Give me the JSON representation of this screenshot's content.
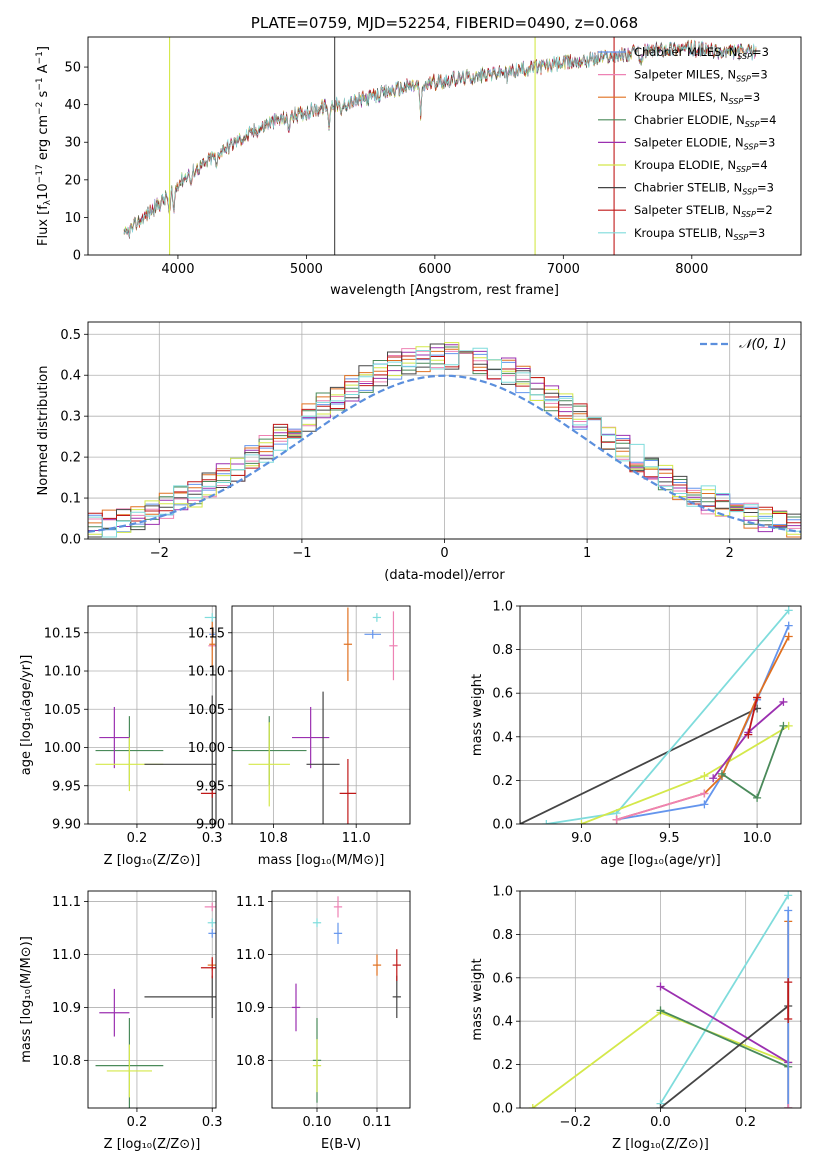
{
  "colors": {
    "chabrier_miles": "#6495ed",
    "salpeter_miles": "#ee82b4",
    "kroupa_miles": "#e07020",
    "chabrier_elodie": "#4a8a5a",
    "salpeter_elodie": "#9b30b0",
    "kroupa_elodie": "#d4e84a",
    "chabrier_stelib": "#454545",
    "salpeter_stelib": "#c01818",
    "kroupa_stelib": "#7fdcdc",
    "normal_curve": "#5b8fdd"
  },
  "chart_data": [
    {
      "id": "spectrum",
      "type": "line",
      "title": "PLATE=0759, MJD=52254, FIBERID=0490, z=0.068",
      "xlabel": "wavelength [Angstrom, rest frame]",
      "ylabel": "Flux [fλ10⁻¹⁷ erg cm⁻² s⁻¹ A⁻¹]",
      "xlim": [
        3300,
        8850
      ],
      "ylim": [
        0,
        58
      ],
      "xticks": [
        "4000",
        "5000",
        "6000",
        "7000",
        "8000"
      ],
      "yticks": [
        "0",
        "10",
        "20",
        "30",
        "40",
        "50"
      ],
      "legend_position": "right",
      "legend": [
        {
          "name": "Chabrier MILES, N",
          "sub": "SSP",
          "suffix": "=3",
          "color_key": "chabrier_miles"
        },
        {
          "name": "Salpeter MILES, N",
          "sub": "SSP",
          "suffix": "=3",
          "color_key": "salpeter_miles"
        },
        {
          "name": "Kroupa MILES, N",
          "sub": "SSP",
          "suffix": "=3",
          "color_key": "kroupa_miles"
        },
        {
          "name": "Chabrier ELODIE, N",
          "sub": "SSP",
          "suffix": "=4",
          "color_key": "chabrier_elodie"
        },
        {
          "name": "Salpeter ELODIE, N",
          "sub": "SSP",
          "suffix": "=3",
          "color_key": "salpeter_elodie"
        },
        {
          "name": "Kroupa ELODIE, N",
          "sub": "SSP",
          "suffix": "=4",
          "color_key": "kroupa_elodie"
        },
        {
          "name": "Chabrier STELIB, N",
          "sub": "SSP",
          "suffix": "=3",
          "color_key": "chabrier_stelib"
        },
        {
          "name": "Salpeter STELIB, N",
          "sub": "SSP",
          "suffix": "=2",
          "color_key": "salpeter_stelib"
        },
        {
          "name": "Kroupa STELIB, N",
          "sub": "SSP",
          "suffix": "=3",
          "color_key": "kroupa_stelib"
        }
      ],
      "continuum": [
        [
          3580,
          5
        ],
        [
          3700,
          9
        ],
        [
          3800,
          12
        ],
        [
          3900,
          15
        ],
        [
          4000,
          19
        ],
        [
          4100,
          22
        ],
        [
          4200,
          24
        ],
        [
          4300,
          27
        ],
        [
          4400,
          29
        ],
        [
          4500,
          31
        ],
        [
          4600,
          33
        ],
        [
          4700,
          35
        ],
        [
          4800,
          36
        ],
        [
          4900,
          37
        ],
        [
          5000,
          38
        ],
        [
          5100,
          39
        ],
        [
          5200,
          40
        ],
        [
          5300,
          40
        ],
        [
          5400,
          41
        ],
        [
          5500,
          42
        ],
        [
          5600,
          43
        ],
        [
          5700,
          44
        ],
        [
          5800,
          45
        ],
        [
          5900,
          45
        ],
        [
          6000,
          46
        ],
        [
          6200,
          47
        ],
        [
          6400,
          48
        ],
        [
          6600,
          49
        ],
        [
          6800,
          50
        ],
        [
          7000,
          51
        ],
        [
          7200,
          52
        ],
        [
          7400,
          53
        ],
        [
          7600,
          54
        ],
        [
          7800,
          55
        ],
        [
          8000,
          55
        ],
        [
          8200,
          54
        ]
      ],
      "vertical_spikes": [
        {
          "x": 5220,
          "color_key": "chabrier_stelib"
        },
        {
          "x": 7395,
          "color_key": "salpeter_stelib"
        },
        {
          "x": 6780,
          "color_key": "kroupa_elodie"
        },
        {
          "x": 3935,
          "color_key": "kroupa_elodie"
        }
      ]
    },
    {
      "id": "residual_histogram",
      "type": "bar",
      "xlabel": "(data-model)/error",
      "ylabel": "Normed distribution",
      "xlim": [
        -2.5,
        2.5
      ],
      "ylim": [
        0,
        0.53
      ],
      "xticks": [
        "−2",
        "−1",
        "0",
        "1",
        "2"
      ],
      "yticks": [
        "0.0",
        "0.1",
        "0.2",
        "0.3",
        "0.4",
        "0.5"
      ],
      "legend_position": "top-right",
      "normal_label": "𝒩(0, 1)",
      "bin_width": 0.1
    },
    {
      "id": "age_vs_Z",
      "type": "scatter",
      "xlabel": "Z [log₁₀(Z/Z⊙)]",
      "ylabel": "age  [log₁₀(age/yr)]",
      "xlim": [
        0.135,
        0.305
      ],
      "ylim": [
        9.9,
        10.185
      ],
      "xticks": [
        "0.2",
        "0.3"
      ],
      "yticks": [
        "9.90",
        "9.95",
        "10.00",
        "10.05",
        "10.10",
        "10.15"
      ],
      "points": [
        {
          "key": "chabrier_miles",
          "x": 0.3,
          "y": 10.148,
          "xerr": 0.004,
          "yerr": 0.0
        },
        {
          "key": "salpeter_miles",
          "x": 0.3,
          "y": 10.133,
          "xerr": 0.0,
          "yerr": 0.0
        },
        {
          "key": "kroupa_miles",
          "x": 0.3,
          "y": 10.135,
          "xerr": 0.004,
          "yerr": 0.03
        },
        {
          "key": "chabrier_elodie",
          "x": 0.19,
          "y": 9.996,
          "xerr": 0.045,
          "yerr": 0.045
        },
        {
          "key": "salpeter_elodie",
          "x": 0.17,
          "y": 10.013,
          "xerr": 0.02,
          "yerr": 0.04
        },
        {
          "key": "kroupa_elodie",
          "x": 0.19,
          "y": 9.978,
          "xerr": 0.045,
          "yerr": 0.035
        },
        {
          "key": "chabrier_stelib",
          "x": 0.3,
          "y": 9.978,
          "xerr": 0.09,
          "yerr": 0.09
        },
        {
          "key": "salpeter_stelib",
          "x": 0.3,
          "y": 9.94,
          "xerr": 0.015,
          "yerr": 0.0
        },
        {
          "key": "kroupa_stelib",
          "x": 0.3,
          "y": 10.17,
          "xerr": 0.01,
          "yerr": 0.0
        }
      ]
    },
    {
      "id": "age_vs_mass",
      "type": "scatter",
      "xlabel": "mass [log₁₀(M/M⊙)]",
      "ylabel": "",
      "xlim": [
        10.7,
        11.13
      ],
      "ylim": [
        9.9,
        10.185
      ],
      "xticks": [
        "10.8",
        "11.0"
      ],
      "yticks": [
        "9.90",
        "9.95",
        "10.00",
        "10.05",
        "10.10",
        "10.15"
      ],
      "points": [
        {
          "key": "chabrier_miles",
          "x": 11.04,
          "y": 10.148,
          "xerr": 0.02,
          "yerr": 0.0
        },
        {
          "key": "salpeter_miles",
          "x": 11.09,
          "y": 10.133,
          "xerr": 0.01,
          "yerr": 0.045
        },
        {
          "key": "kroupa_miles",
          "x": 10.98,
          "y": 10.135,
          "xerr": 0.01,
          "yerr": 0.048
        },
        {
          "key": "chabrier_elodie",
          "x": 10.79,
          "y": 9.996,
          "xerr": 0.09,
          "yerr": 0.045
        },
        {
          "key": "salpeter_elodie",
          "x": 10.89,
          "y": 10.013,
          "xerr": 0.045,
          "yerr": 0.04
        },
        {
          "key": "kroupa_elodie",
          "x": 10.79,
          "y": 9.978,
          "xerr": 0.05,
          "yerr": 0.055
        },
        {
          "key": "chabrier_stelib",
          "x": 10.92,
          "y": 9.978,
          "xerr": 0.04,
          "yerr": 0.095
        },
        {
          "key": "salpeter_stelib",
          "x": 10.98,
          "y": 9.94,
          "xerr": 0.02,
          "yerr": 0.045
        },
        {
          "key": "kroupa_stelib",
          "x": 11.05,
          "y": 10.17,
          "xerr": 0.01,
          "yerr": 0.0
        }
      ]
    },
    {
      "id": "weight_vs_age",
      "type": "line",
      "xlabel": "age  [log₁₀(age/yr)]",
      "ylabel": "mass weight",
      "xlim": [
        8.65,
        10.25
      ],
      "ylim": [
        0,
        1.0
      ],
      "xticks": [
        "9.0",
        "9.5",
        "10.0"
      ],
      "yticks": [
        "0.0",
        "0.2",
        "0.4",
        "0.6",
        "0.8",
        "1.0"
      ],
      "series": [
        {
          "key": "chabrier_stelib",
          "x": [
            8.65,
            10.0
          ],
          "y": [
            0.0,
            0.53
          ]
        },
        {
          "key": "kroupa_stelib",
          "x": [
            8.8,
            9.2,
            10.18
          ],
          "y": [
            0.0,
            0.05,
            0.98
          ]
        },
        {
          "key": "kroupa_elodie",
          "x": [
            9.0,
            9.7,
            10.18
          ],
          "y": [
            0.0,
            0.22,
            0.45
          ]
        },
        {
          "key": "chabrier_miles",
          "x": [
            9.2,
            9.7,
            9.8,
            10.0,
            10.18
          ],
          "y": [
            0.02,
            0.09,
            0.22,
            0.57,
            0.91
          ]
        },
        {
          "key": "kroupa_miles",
          "x": [
            9.2,
            9.7,
            9.8,
            10.0,
            10.18
          ],
          "y": [
            0.02,
            0.14,
            0.22,
            0.58,
            0.86
          ]
        },
        {
          "key": "salpeter_elodie",
          "x": [
            9.75,
            9.95,
            10.15
          ],
          "y": [
            0.21,
            0.42,
            0.56
          ]
        },
        {
          "key": "chabrier_elodie",
          "x": [
            9.8,
            10.0,
            10.15
          ],
          "y": [
            0.23,
            0.12,
            0.45
          ]
        },
        {
          "key": "salpeter_stelib",
          "x": [
            9.95,
            10.0
          ],
          "y": [
            0.41,
            0.58
          ]
        },
        {
          "key": "salpeter_miles",
          "x": [
            9.2,
            9.7
          ],
          "y": [
            0.02,
            0.14
          ]
        }
      ]
    },
    {
      "id": "mass_vs_Z",
      "type": "scatter",
      "xlabel": "Z [log₁₀(Z/Z⊙)]",
      "ylabel": "mass [log₁₀(M/M⊙)]",
      "xlim": [
        0.135,
        0.305
      ],
      "ylim": [
        10.71,
        11.12
      ],
      "xticks": [
        "0.2",
        "0.3"
      ],
      "yticks": [
        "10.8",
        "10.9",
        "11.0",
        "11.1"
      ],
      "points": [
        {
          "key": "chabrier_miles",
          "x": 0.3,
          "y": 11.04,
          "xerr": 0.0,
          "yerr": 0.0
        },
        {
          "key": "salpeter_miles",
          "x": 0.3,
          "y": 11.09,
          "xerr": 0.01,
          "yerr": 0.0
        },
        {
          "key": "kroupa_miles",
          "x": 0.3,
          "y": 10.98,
          "xerr": 0.006,
          "yerr": 0.01
        },
        {
          "key": "chabrier_elodie",
          "x": 0.19,
          "y": 10.79,
          "xerr": 0.045,
          "yerr": 0.09
        },
        {
          "key": "salpeter_elodie",
          "x": 0.17,
          "y": 10.89,
          "xerr": 0.02,
          "yerr": 0.045
        },
        {
          "key": "kroupa_elodie",
          "x": 0.19,
          "y": 10.78,
          "xerr": 0.03,
          "yerr": 0.05
        },
        {
          "key": "chabrier_stelib",
          "x": 0.3,
          "y": 10.92,
          "xerr": 0.09,
          "yerr": 0.04
        },
        {
          "key": "salpeter_stelib",
          "x": 0.3,
          "y": 10.975,
          "xerr": 0.015,
          "yerr": 0.02
        },
        {
          "key": "kroupa_stelib",
          "x": 0.3,
          "y": 11.06,
          "xerr": 0.006,
          "yerr": 0.0
        }
      ]
    },
    {
      "id": "mass_vs_EBV",
      "type": "scatter",
      "xlabel": "E(B-V)",
      "ylabel": "",
      "xlim": [
        0.0925,
        0.1155
      ],
      "ylim": [
        10.71,
        11.12
      ],
      "xticks": [
        "0.10",
        "0.11"
      ],
      "yticks": [
        "10.8",
        "10.9",
        "11.0",
        "11.1"
      ],
      "points": [
        {
          "key": "chabrier_miles",
          "x": 0.1035,
          "y": 11.04,
          "xerr": 0.0,
          "yerr": 0.02
        },
        {
          "key": "salpeter_miles",
          "x": 0.1035,
          "y": 11.09,
          "xerr": 0.0,
          "yerr": 0.02
        },
        {
          "key": "kroupa_miles",
          "x": 0.11,
          "y": 10.98,
          "xerr": 0.0,
          "yerr": 0.02
        },
        {
          "key": "chabrier_elodie",
          "x": 0.1,
          "y": 10.8,
          "xerr": 0.0,
          "yerr": 0.08
        },
        {
          "key": "salpeter_elodie",
          "x": 0.0965,
          "y": 10.9,
          "xerr": 0.0,
          "yerr": 0.045
        },
        {
          "key": "kroupa_elodie",
          "x": 0.1,
          "y": 10.79,
          "xerr": 0.0,
          "yerr": 0.05
        },
        {
          "key": "chabrier_stelib",
          "x": 0.1133,
          "y": 10.92,
          "xerr": 0.0,
          "yerr": 0.04
        },
        {
          "key": "salpeter_stelib",
          "x": 0.1133,
          "y": 10.98,
          "xerr": 0.0,
          "yerr": 0.03
        },
        {
          "key": "kroupa_stelib",
          "x": 0.1,
          "y": 11.06,
          "xerr": 0.0,
          "yerr": 0.0
        }
      ]
    },
    {
      "id": "weight_vs_Z",
      "type": "line",
      "xlabel": "Z [log₁₀(Z/Z⊙)]",
      "ylabel": "mass weight",
      "xlim": [
        -0.33,
        0.33
      ],
      "ylim": [
        0,
        1.0
      ],
      "xticks": [
        "−0.2",
        "0.0",
        "0.2"
      ],
      "yticks": [
        "0.0",
        "0.2",
        "0.4",
        "0.6",
        "0.8",
        "1.0"
      ],
      "series": [
        {
          "key": "kroupa_stelib",
          "x": [
            0.0,
            0.3
          ],
          "y": [
            0.02,
            0.98
          ]
        },
        {
          "key": "kroupa_elodie",
          "x": [
            -0.3,
            0.0,
            0.3
          ],
          "y": [
            0.0,
            0.44,
            0.21
          ]
        },
        {
          "key": "salpeter_elodie",
          "x": [
            0.0,
            0.3
          ],
          "y": [
            0.56,
            0.21
          ]
        },
        {
          "key": "chabrier_elodie",
          "x": [
            0.0,
            0.3
          ],
          "y": [
            0.45,
            0.19
          ]
        },
        {
          "key": "chabrier_stelib",
          "x": [
            0.0,
            0.3
          ],
          "y": [
            0.0,
            0.47
          ]
        },
        {
          "key": "kroupa_miles",
          "x": [
            0.3,
            0.3
          ],
          "y": [
            0.0,
            0.86
          ]
        },
        {
          "key": "chabrier_miles",
          "x": [
            0.3,
            0.3
          ],
          "y": [
            0.0,
            0.91
          ]
        },
        {
          "key": "salpeter_stelib",
          "x": [
            0.3,
            0.3
          ],
          "y": [
            0.41,
            0.58
          ]
        },
        {
          "key": "salpeter_miles",
          "x": [
            0.3,
            0.3
          ],
          "y": [
            0.0,
            0.0
          ]
        }
      ]
    }
  ]
}
